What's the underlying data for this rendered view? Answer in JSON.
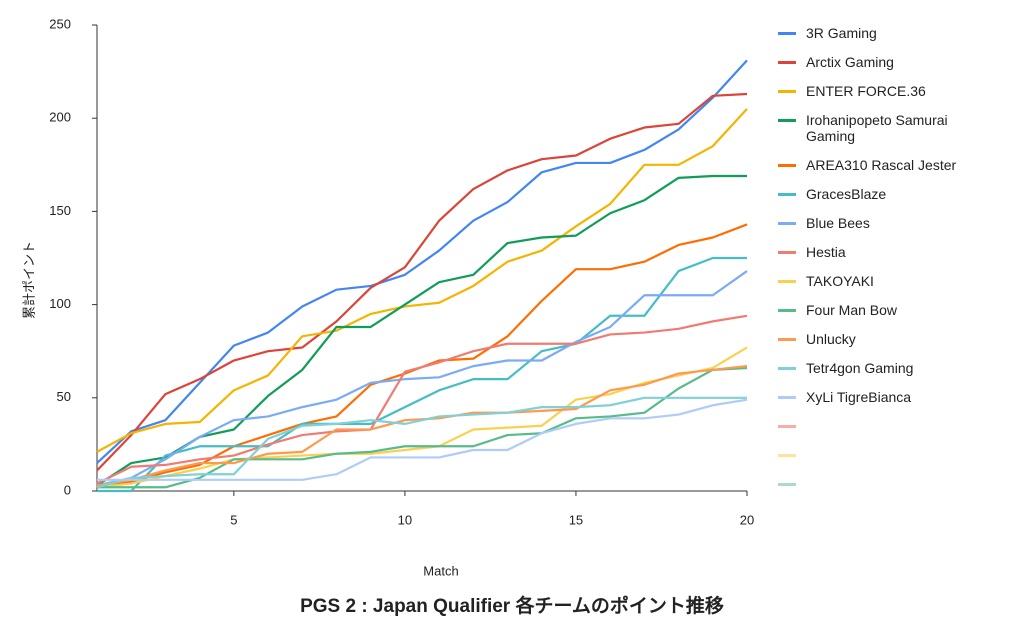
{
  "chart_data": {
    "type": "line",
    "title": "PGS 2 : Japan Qualifier 各チームのポイント推移",
    "x_label": "Match",
    "y_label": "累計ポイント",
    "x": [
      1,
      2,
      3,
      4,
      5,
      6,
      7,
      8,
      9,
      10,
      11,
      12,
      13,
      14,
      15,
      16,
      17,
      18,
      19,
      20
    ],
    "xlim": [
      1,
      20
    ],
    "xticks": [
      5,
      10,
      15,
      20
    ],
    "ylim": [
      0,
      250
    ],
    "yticks": [
      0,
      50,
      100,
      150,
      200,
      250
    ],
    "grid": false,
    "legend": "right",
    "series": [
      {
        "name": "3R Gaming",
        "color": "#4285f4",
        "values": [
          15,
          32,
          38,
          58,
          78,
          85,
          99,
          108,
          110,
          116,
          129,
          145,
          155,
          171,
          176,
          176,
          183,
          194,
          211,
          231
        ]
      },
      {
        "name": "Arctix Gaming",
        "color": "#db4437",
        "values": [
          11,
          30,
          52,
          60,
          70,
          75,
          77,
          91,
          109,
          120,
          145,
          162,
          172,
          178,
          180,
          189,
          195,
          197,
          212,
          213
        ]
      },
      {
        "name": "ENTER FORCE.36",
        "color": "#f4b400",
        "values": [
          21,
          31,
          36,
          37,
          54,
          62,
          83,
          86,
          95,
          99,
          101,
          110,
          123,
          129,
          142,
          154,
          175,
          175,
          185,
          205
        ]
      },
      {
        "name": "Irohanipopeto Samurai Gaming",
        "color": "#0f9d58",
        "values": [
          3,
          15,
          18,
          29,
          33,
          51,
          65,
          88,
          88,
          100,
          112,
          116,
          133,
          136,
          137,
          149,
          156,
          168,
          169,
          169
        ]
      },
      {
        "name": "AREA310 Rascal Jester",
        "color": "#ff6d00",
        "values": [
          2,
          5,
          10,
          14,
          24,
          30,
          36,
          40,
          57,
          63,
          70,
          71,
          83,
          102,
          119,
          119,
          123,
          132,
          136,
          143
        ]
      },
      {
        "name": "GracesBlaze",
        "color": "#46bdc6",
        "values": [
          0,
          0,
          19,
          24,
          24,
          24,
          36,
          36,
          36,
          45,
          54,
          60,
          60,
          75,
          79,
          94,
          94,
          118,
          125,
          125
        ]
      },
      {
        "name": "Blue Bees",
        "color": "#7baaf7",
        "values": [
          3,
          7,
          17,
          29,
          38,
          40,
          45,
          49,
          58,
          60,
          61,
          67,
          70,
          70,
          80,
          88,
          105,
          105,
          105,
          118
        ]
      },
      {
        "name": "Hestia",
        "color": "#f07b72",
        "values": [
          4,
          13,
          14,
          17,
          19,
          25,
          30,
          32,
          33,
          64,
          69,
          75,
          79,
          79,
          79,
          84,
          85,
          87,
          91,
          94
        ]
      },
      {
        "name": "TAKOYAKI",
        "color": "#fcd04f",
        "values": [
          2,
          4,
          8,
          12,
          17,
          18,
          19,
          20,
          20,
          22,
          24,
          33,
          34,
          35,
          49,
          52,
          58,
          62,
          66,
          77
        ]
      },
      {
        "name": "Four Man Bow",
        "color": "#57bb8a",
        "values": [
          2,
          2,
          2,
          7,
          17,
          17,
          17,
          20,
          21,
          24,
          24,
          24,
          30,
          31,
          39,
          40,
          42,
          55,
          65,
          66
        ]
      },
      {
        "name": "Unlucky",
        "color": "#ff994d",
        "values": [
          3,
          6,
          11,
          15,
          15,
          20,
          21,
          33,
          33,
          38,
          39,
          42,
          42,
          43,
          44,
          54,
          57,
          63,
          65,
          67
        ]
      },
      {
        "name": "Tetr4gon Gaming",
        "color": "#7ed1d7",
        "values": [
          2,
          7,
          8,
          9,
          9,
          28,
          35,
          36,
          38,
          36,
          40,
          41,
          42,
          45,
          45,
          46,
          50,
          50,
          50,
          50
        ]
      },
      {
        "name": "XyLi TigreBianca",
        "color": "#aecbfa",
        "values": [
          6,
          6,
          6,
          6,
          6,
          6,
          6,
          9,
          18,
          18,
          18,
          22,
          22,
          31,
          36,
          39,
          39,
          41,
          46,
          49
        ]
      },
      {
        "name": null,
        "color": "#f6aea9",
        "values": [
          null,
          null,
          null,
          null,
          null,
          null,
          null,
          null,
          null,
          null,
          null,
          null,
          null,
          null,
          null,
          null,
          null,
          null,
          null,
          null
        ]
      },
      {
        "name": null,
        "color": "#fde49b",
        "values": [
          null,
          null,
          null,
          null,
          null,
          null,
          null,
          null,
          null,
          null,
          null,
          null,
          null,
          null,
          null,
          null,
          null,
          null,
          null,
          null
        ]
      },
      {
        "name": null,
        "color": "#abdcc5",
        "values": [
          null,
          null,
          null,
          null,
          null,
          null,
          null,
          null,
          null,
          null,
          null,
          null,
          null,
          null,
          null,
          null,
          null,
          null,
          null,
          null
        ]
      }
    ]
  }
}
